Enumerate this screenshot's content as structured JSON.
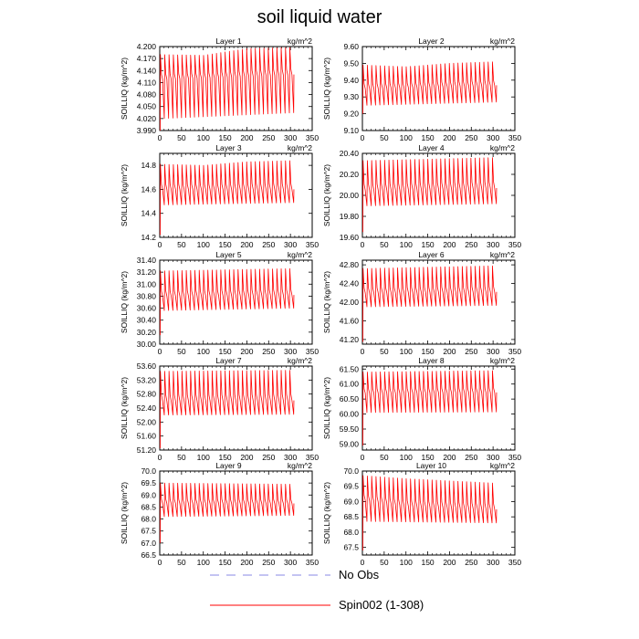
{
  "title": "soil liquid water",
  "legend": [
    {
      "label": "No Obs",
      "color": "#8a8ae6",
      "style": "dashed"
    },
    {
      "label": "Spin002 (1-308)",
      "color": "#ff0000",
      "style": "solid"
    }
  ],
  "chart_data": [
    {
      "type": "line",
      "title": "Layer 1",
      "units": "kg/m^2",
      "ylabel": "SOILLIQ  (kg/m^2)",
      "xlim": [
        0,
        350
      ],
      "xticks": [
        0,
        50,
        100,
        150,
        200,
        250,
        300,
        350
      ],
      "ylim": [
        3.99,
        4.2
      ],
      "yticks": [
        3.99,
        4.02,
        4.05,
        4.08,
        4.11,
        4.14,
        4.17,
        4.2
      ],
      "ydec": 3,
      "series": [
        {
          "x_range": [
            1,
            308
          ],
          "cycles": 31,
          "lower": [
            [
              0,
              4.02
            ],
            [
              308,
              4.035
            ]
          ],
          "mid": [
            [
              0,
              4.118
            ],
            [
              308,
              4.13
            ]
          ],
          "upper": [
            [
              0,
              4.18
            ],
            [
              100,
              4.178
            ],
            [
              200,
              4.195
            ],
            [
              308,
              4.198
            ]
          ],
          "start_value": 3.99
        }
      ]
    },
    {
      "type": "line",
      "title": "Layer 2",
      "units": "kg/m^2",
      "ylabel": "SOILLIQ  (kg/m^2)",
      "xlim": [
        0,
        350
      ],
      "xticks": [
        0,
        50,
        100,
        150,
        200,
        250,
        300,
        350
      ],
      "ylim": [
        9.1,
        9.6
      ],
      "yticks": [
        9.1,
        9.2,
        9.3,
        9.4,
        9.5,
        9.6
      ],
      "ydec": 2,
      "series": [
        {
          "x_range": [
            1,
            308
          ],
          "cycles": 31,
          "lower": [
            [
              0,
              9.25
            ],
            [
              308,
              9.27
            ]
          ],
          "mid": [
            [
              0,
              9.35
            ],
            [
              308,
              9.37
            ]
          ],
          "upper": [
            [
              0,
              9.49
            ],
            [
              100,
              9.48
            ],
            [
              200,
              9.5
            ],
            [
              308,
              9.51
            ]
          ],
          "start_value": 9.2
        }
      ]
    },
    {
      "type": "line",
      "title": "Layer 3",
      "units": "kg/m^2",
      "ylabel": "SOILLIQ  (kg/m^2)",
      "xlim": [
        0,
        350
      ],
      "xticks": [
        0,
        50,
        100,
        150,
        200,
        250,
        300,
        350
      ],
      "ylim": [
        14.2,
        14.9
      ],
      "yticks": [
        14.2,
        14.4,
        14.6,
        14.8
      ],
      "ydec": 1,
      "series": [
        {
          "x_range": [
            1,
            308
          ],
          "cycles": 31,
          "lower": [
            [
              0,
              14.47
            ],
            [
              308,
              14.49
            ]
          ],
          "mid": [
            [
              0,
              14.6
            ],
            [
              308,
              14.6
            ]
          ],
          "upper": [
            [
              0,
              14.81
            ],
            [
              100,
              14.8
            ],
            [
              200,
              14.83
            ],
            [
              308,
              14.84
            ]
          ],
          "start_value": 14.22
        }
      ]
    },
    {
      "type": "line",
      "title": "Layer 4",
      "units": "kg/m^2",
      "ylabel": "SOILLIQ  (kg/m^2)",
      "xlim": [
        0,
        350
      ],
      "xticks": [
        0,
        50,
        100,
        150,
        200,
        250,
        300,
        350
      ],
      "ylim": [
        19.6,
        20.4
      ],
      "yticks": [
        19.6,
        19.8,
        20.0,
        20.2,
        20.4
      ],
      "ydec": 2,
      "series": [
        {
          "x_range": [
            1,
            308
          ],
          "cycles": 31,
          "lower": [
            [
              0,
              19.9
            ],
            [
              308,
              19.92
            ]
          ],
          "mid": [
            [
              0,
              20.05
            ],
            [
              308,
              20.07
            ]
          ],
          "upper": [
            [
              0,
              20.33
            ],
            [
              308,
              20.36
            ]
          ],
          "start_value": 19.65
        }
      ]
    },
    {
      "type": "line",
      "title": "Layer 5",
      "units": "kg/m^2",
      "ylabel": "SOILLIQ  (kg/m^2)",
      "xlim": [
        0,
        350
      ],
      "xticks": [
        0,
        50,
        100,
        150,
        200,
        250,
        300,
        350
      ],
      "ylim": [
        30.0,
        31.4
      ],
      "yticks": [
        30.0,
        30.2,
        30.4,
        30.6,
        30.8,
        31.0,
        31.2,
        31.4
      ],
      "ydec": 2,
      "series": [
        {
          "x_range": [
            1,
            308
          ],
          "cycles": 31,
          "lower": [
            [
              0,
              30.56
            ],
            [
              308,
              30.6
            ]
          ],
          "mid": [
            [
              0,
              30.8
            ],
            [
              308,
              30.82
            ]
          ],
          "upper": [
            [
              0,
              31.22
            ],
            [
              308,
              31.26
            ]
          ],
          "start_value": 30.15
        }
      ]
    },
    {
      "type": "line",
      "title": "Layer 6",
      "units": "kg/m^2",
      "ylabel": "SOILLIQ  (kg/m^2)",
      "xlim": [
        0,
        350
      ],
      "xticks": [
        0,
        50,
        100,
        150,
        200,
        250,
        300,
        350
      ],
      "ylim": [
        41.1,
        42.9
      ],
      "yticks": [
        41.2,
        41.6,
        42.0,
        42.4,
        42.8
      ],
      "ydec": 2,
      "series": [
        {
          "x_range": [
            1,
            308
          ],
          "cycles": 31,
          "lower": [
            [
              0,
              41.9
            ],
            [
              308,
              41.93
            ]
          ],
          "mid": [
            [
              0,
              42.2
            ],
            [
              308,
              42.22
            ]
          ],
          "upper": [
            [
              0,
              42.72
            ],
            [
              308,
              42.78
            ]
          ],
          "start_value": 41.15
        }
      ]
    },
    {
      "type": "line",
      "title": "Layer 7",
      "units": "kg/m^2",
      "ylabel": "SOILLIQ  (kg/m^2)",
      "xlim": [
        0,
        350
      ],
      "xticks": [
        0,
        50,
        100,
        150,
        200,
        250,
        300,
        350
      ],
      "ylim": [
        51.2,
        53.6
      ],
      "yticks": [
        51.2,
        51.6,
        52.0,
        52.4,
        52.8,
        53.2,
        53.6
      ],
      "ydec": 2,
      "series": [
        {
          "x_range": [
            1,
            308
          ],
          "cycles": 31,
          "lower": [
            [
              0,
              52.2
            ],
            [
              308,
              52.22
            ]
          ],
          "mid": [
            [
              0,
              52.6
            ],
            [
              308,
              52.62
            ]
          ],
          "upper": [
            [
              0,
              53.45
            ],
            [
              308,
              53.48
            ]
          ],
          "start_value": 51.25
        }
      ]
    },
    {
      "type": "line",
      "title": "Layer 8",
      "units": "kg/m^2",
      "ylabel": "SOILLIQ  (kg/m^2)",
      "xlim": [
        0,
        350
      ],
      "xticks": [
        0,
        50,
        100,
        150,
        200,
        250,
        300,
        350
      ],
      "ylim": [
        58.8,
        61.6
      ],
      "yticks": [
        59.0,
        59.5,
        60.0,
        60.5,
        61.0,
        61.5
      ],
      "ydec": 2,
      "series": [
        {
          "x_range": [
            1,
            308
          ],
          "cycles": 31,
          "lower": [
            [
              0,
              60.05
            ],
            [
              308,
              60.07
            ]
          ],
          "mid": [
            [
              0,
              60.7
            ],
            [
              308,
              60.72
            ]
          ],
          "upper": [
            [
              0,
              61.4
            ],
            [
              308,
              61.45
            ]
          ],
          "start_value": 58.95
        }
      ]
    },
    {
      "type": "line",
      "title": "Layer 9",
      "units": "kg/m^2",
      "ylabel": "SOILLIQ  (kg/m^2)",
      "xlim": [
        0,
        350
      ],
      "xticks": [
        0,
        50,
        100,
        150,
        200,
        250,
        300,
        350
      ],
      "ylim": [
        66.5,
        70.0
      ],
      "yticks": [
        66.5,
        67.0,
        67.5,
        68.0,
        68.5,
        69.0,
        69.5,
        70.0
      ],
      "ydec": 1,
      "series": [
        {
          "x_range": [
            1,
            308
          ],
          "cycles": 31,
          "lower": [
            [
              0,
              68.1
            ],
            [
              308,
              68.15
            ]
          ],
          "mid": [
            [
              0,
              68.65
            ],
            [
              308,
              68.65
            ]
          ],
          "upper": [
            [
              0,
              69.5
            ],
            [
              308,
              69.45
            ]
          ],
          "start_value": 67.0
        }
      ]
    },
    {
      "type": "line",
      "title": "Layer 10",
      "units": "kg/m^2",
      "ylabel": "SOILLIQ  (kg/m^2)",
      "xlim": [
        0,
        350
      ],
      "xticks": [
        0,
        50,
        100,
        150,
        200,
        250,
        300,
        350
      ],
      "ylim": [
        67.25,
        70.0
      ],
      "yticks": [
        67.5,
        68.0,
        68.5,
        69.0,
        69.5,
        70.0
      ],
      "ydec": 1,
      "series": [
        {
          "x_range": [
            1,
            308
          ],
          "cycles": 31,
          "lower": [
            [
              0,
              68.35
            ],
            [
              308,
              68.3
            ]
          ],
          "mid": [
            [
              0,
              69.05
            ],
            [
              100,
              68.85
            ],
            [
              308,
              68.75
            ]
          ],
          "upper": [
            [
              0,
              69.85
            ],
            [
              100,
              69.75
            ],
            [
              308,
              69.6
            ]
          ],
          "start_value": 67.4
        }
      ]
    }
  ]
}
